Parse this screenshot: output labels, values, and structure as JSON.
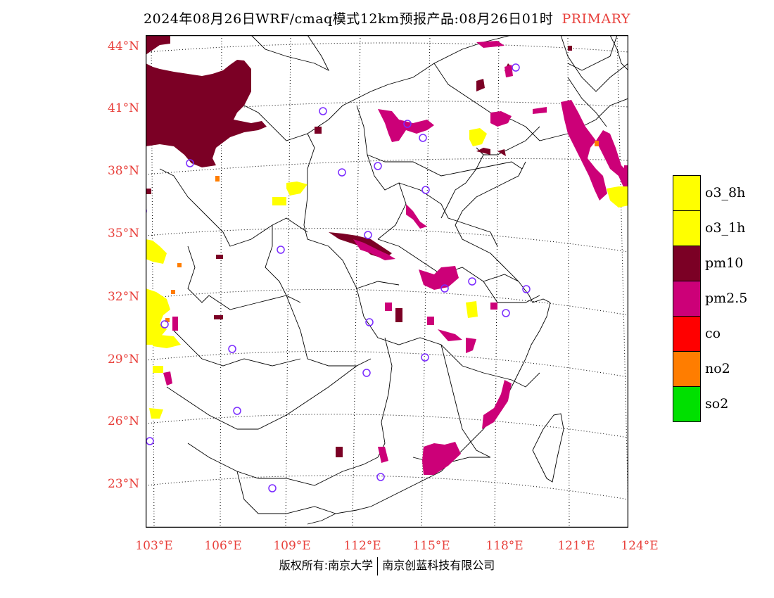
{
  "title": {
    "main": "2024年08月26日WRF/cmaq模式12km预报产品:08月26日01时",
    "tag": "PRIMARY"
  },
  "lat_labels": [
    "44°N",
    "41°N",
    "38°N",
    "35°N",
    "32°N",
    "29°N",
    "26°N",
    "23°N"
  ],
  "lon_labels": [
    "103°E",
    "106°E",
    "109°E",
    "112°E",
    "115°E",
    "118°E",
    "121°E",
    "124°E"
  ],
  "legend": [
    {
      "label": "o3_8h",
      "color": "#ffff00"
    },
    {
      "label": "o3_1h",
      "color": "#ffff00"
    },
    {
      "label": "pm10",
      "color": "#7b0025"
    },
    {
      "label": "pm2.5",
      "color": "#cc0078"
    },
    {
      "label": "co",
      "color": "#ff0000"
    },
    {
      "label": "no2",
      "color": "#ff7d00"
    },
    {
      "label": "so2",
      "color": "#00e000"
    }
  ],
  "footer": {
    "left": "版权所有:南京大学",
    "right": "南京创蓝科技有限公司"
  }
}
